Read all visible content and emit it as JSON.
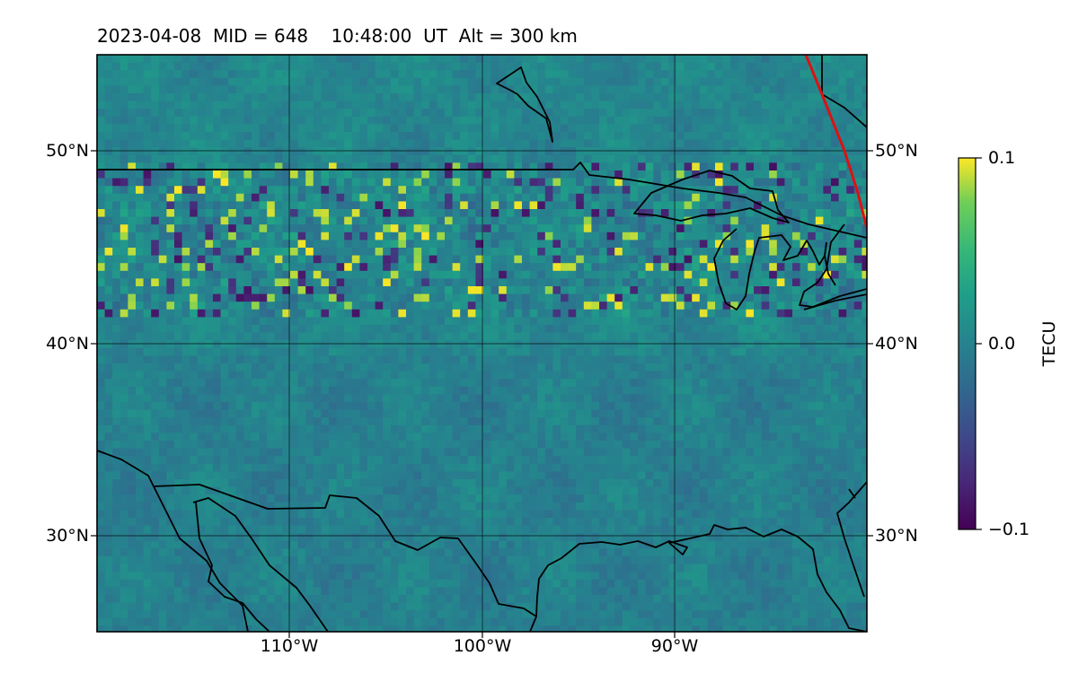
{
  "title": "2023-04-08  MID = 648    10:48:00  UT  Alt = 300 km",
  "map": {
    "extent": {
      "lon": [
        -120,
        -80
      ],
      "lat": [
        25,
        55
      ]
    },
    "latitude_labels": [
      {
        "lat": 50,
        "text": "50°N"
      },
      {
        "lat": 40,
        "text": "40°N"
      },
      {
        "lat": 30,
        "text": "30°N"
      }
    ],
    "longitude_labels": [
      {
        "lon": -110,
        "text": "110°W"
      },
      {
        "lon": -100,
        "text": "100°W"
      },
      {
        "lon": -90,
        "text": "90°W"
      }
    ],
    "gridlines": true,
    "colormap": "viridis",
    "colors": {
      "coastline": "#000000",
      "terminator": "#dd1111",
      "gridline": "#000000"
    }
  },
  "colorbar": {
    "label": "TECU",
    "range": [
      -0.1,
      0.1
    ],
    "ticks": [
      {
        "value": 0.1,
        "text": "0.1"
      },
      {
        "value": 0.0,
        "text": "0.0"
      },
      {
        "value": -0.1,
        "text": "−0.1"
      }
    ]
  }
}
